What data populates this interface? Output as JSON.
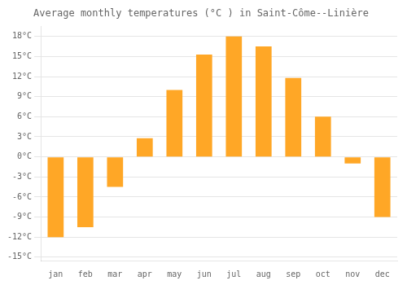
{
  "chart_data": {
    "type": "bar",
    "title": "Average monthly temperatures (°C ) in Saint-Côme--Linière",
    "categories": [
      "jan",
      "feb",
      "mar",
      "apr",
      "may",
      "jun",
      "jul",
      "aug",
      "sep",
      "oct",
      "nov",
      "dec"
    ],
    "values": [
      -12,
      -10.5,
      -4.5,
      2.8,
      10,
      15.3,
      18,
      16.5,
      11.8,
      6,
      -1,
      -9
    ],
    "color": "#FFA726",
    "ylim": [
      -15.5,
      19.5
    ],
    "yticks": [
      {
        "value": -15,
        "label": "-15°C"
      },
      {
        "value": -12,
        "label": "-12°C"
      },
      {
        "value": -9,
        "label": "-9°C"
      },
      {
        "value": -6,
        "label": "-6°C"
      },
      {
        "value": -3,
        "label": "-3°C"
      },
      {
        "value": 0,
        "label": "0°C"
      },
      {
        "value": 3,
        "label": "3°C"
      },
      {
        "value": 6,
        "label": "6°C"
      },
      {
        "value": 9,
        "label": "9°C"
      },
      {
        "value": 12,
        "label": "12°C"
      },
      {
        "value": 15,
        "label": "15°C"
      },
      {
        "value": 18,
        "label": "18°C"
      }
    ],
    "grid": true
  }
}
